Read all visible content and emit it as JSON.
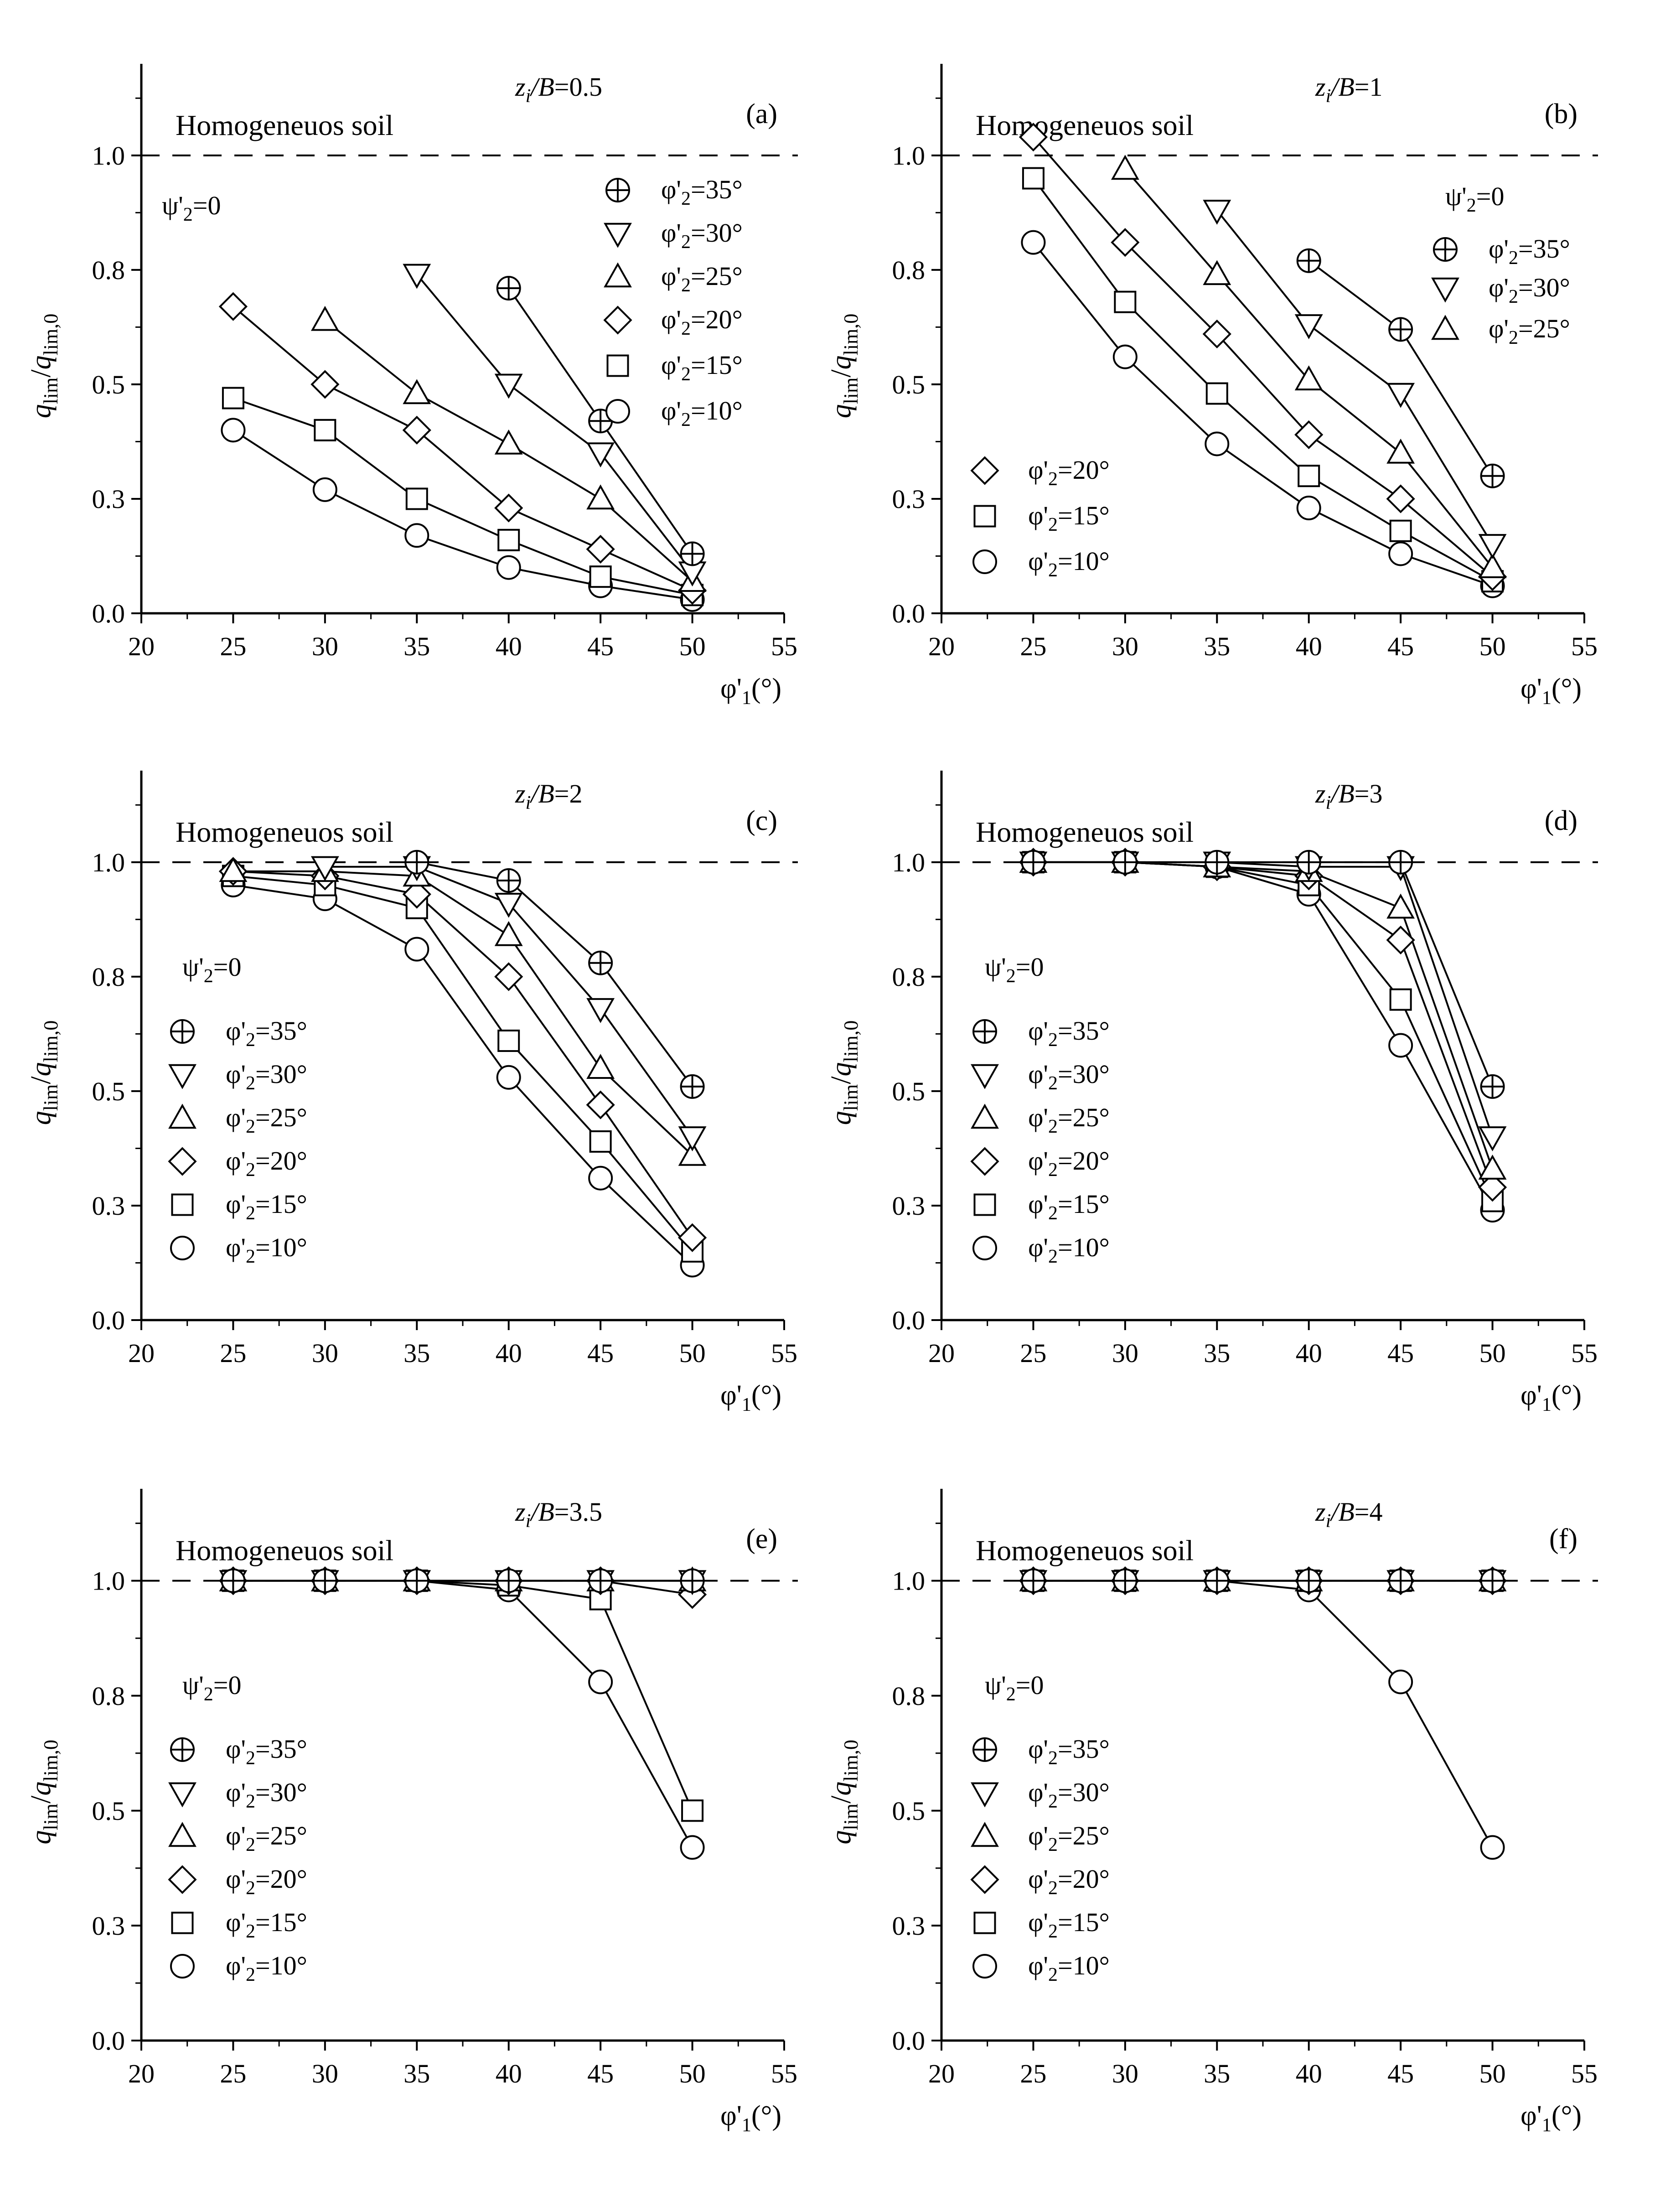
{
  "y_tick_labels": [
    "0.0",
    "0.3",
    "0.5",
    "0.8",
    "1.0"
  ],
  "x_tick_labels": [
    "20",
    "25",
    "30",
    "35",
    "40",
    "45",
    "50",
    "55"
  ],
  "ylabel": {
    "q": "q",
    "lim": "lim",
    "slash": "/",
    "q2": "q",
    "sub2": "lim,0"
  },
  "xlabel": {
    "base": "φ'",
    "sub": "1",
    "unit": "(°)"
  },
  "homogeneous_label": "Homogeneuos soil",
  "psi_label": {
    "base": "ψ'",
    "sub": "2",
    "val": "=0"
  },
  "legend_entries": [
    {
      "base": "φ'",
      "sub": "2",
      "val": "=35°",
      "marker": "circle-plus"
    },
    {
      "base": "φ'",
      "sub": "2",
      "val": "=30°",
      "marker": "triangle-down"
    },
    {
      "base": "φ'",
      "sub": "2",
      "val": "=25°",
      "marker": "triangle-up"
    },
    {
      "base": "φ'",
      "sub": "2",
      "val": "=20°",
      "marker": "diamond"
    },
    {
      "base": "φ'",
      "sub": "2",
      "val": "=15°",
      "marker": "square"
    },
    {
      "base": "φ'",
      "sub": "2",
      "val": "=10°",
      "marker": "circle"
    }
  ],
  "chart_data": [
    {
      "type": "line",
      "panel": "(a)",
      "ratio_label": "zi/B=0.5",
      "ratio_value": "0.5",
      "x_label": "φ'1(°)",
      "y_label": "qlim/qlim,0",
      "xlim": [
        20,
        55
      ],
      "ylim": [
        0,
        1.2
      ],
      "reference_line": {
        "y": 1.0,
        "label": "Homogeneuos soil"
      },
      "series": [
        {
          "name": "φ'2=35°",
          "x": [
            40,
            45,
            50
          ],
          "y": [
            0.71,
            0.42,
            0.13
          ]
        },
        {
          "name": "φ'2=30°",
          "x": [
            35,
            40,
            45,
            50
          ],
          "y": [
            0.74,
            0.5,
            0.35,
            0.09
          ]
        },
        {
          "name": "φ'2=25°",
          "x": [
            30,
            35,
            40,
            45,
            50
          ],
          "y": [
            0.64,
            0.48,
            0.37,
            0.25,
            0.07
          ]
        },
        {
          "name": "φ'2=20°",
          "x": [
            25,
            30,
            35,
            40,
            45,
            50
          ],
          "y": [
            0.67,
            0.5,
            0.4,
            0.23,
            0.14,
            0.05
          ]
        },
        {
          "name": "φ'2=15°",
          "x": [
            25,
            30,
            35,
            40,
            45,
            50
          ],
          "y": [
            0.47,
            0.4,
            0.25,
            0.16,
            0.08,
            0.04
          ]
        },
        {
          "name": "φ'2=10°",
          "x": [
            25,
            30,
            35,
            40,
            45,
            50
          ],
          "y": [
            0.4,
            0.27,
            0.17,
            0.1,
            0.06,
            0.03
          ]
        }
      ]
    },
    {
      "type": "line",
      "panel": "(b)",
      "ratio_label": "zi/B=1",
      "ratio_value": "1",
      "x_label": "φ'1(°)",
      "y_label": "qlim/qlim,0",
      "xlim": [
        20,
        55
      ],
      "ylim": [
        0,
        1.2
      ],
      "reference_line": {
        "y": 1.0,
        "label": "Homogeneuos soil"
      },
      "series": [
        {
          "name": "φ'2=35°",
          "x": [
            40,
            45,
            50
          ],
          "y": [
            0.77,
            0.62,
            0.3
          ]
        },
        {
          "name": "φ'2=30°",
          "x": [
            35,
            40,
            45,
            50
          ],
          "y": [
            0.88,
            0.63,
            0.48,
            0.15
          ]
        },
        {
          "name": "φ'2=25°",
          "x": [
            30,
            35,
            40,
            45,
            50
          ],
          "y": [
            0.97,
            0.74,
            0.51,
            0.35,
            0.1
          ]
        },
        {
          "name": "φ'2=20°",
          "x": [
            25,
            30,
            35,
            40,
            45,
            50
          ],
          "y": [
            1.04,
            0.81,
            0.61,
            0.39,
            0.25,
            0.08
          ]
        },
        {
          "name": "φ'2=15°",
          "x": [
            25,
            30,
            35,
            40,
            45,
            50
          ],
          "y": [
            0.95,
            0.68,
            0.48,
            0.3,
            0.18,
            0.07
          ]
        },
        {
          "name": "φ'2=10°",
          "x": [
            25,
            30,
            35,
            40,
            45,
            50
          ],
          "y": [
            0.81,
            0.56,
            0.37,
            0.23,
            0.13,
            0.06
          ]
        }
      ]
    },
    {
      "type": "line",
      "panel": "(c)",
      "ratio_label": "zi/B=2",
      "ratio_value": "2",
      "x_label": "φ'1(°)",
      "y_label": "qlim/qlim,0",
      "xlim": [
        20,
        55
      ],
      "ylim": [
        0,
        1.2
      ],
      "reference_line": {
        "y": 1.0,
        "label": "Homogeneuos soil"
      },
      "series": [
        {
          "name": "φ'2=35°",
          "x": [
            35,
            40,
            45,
            50
          ],
          "y": [
            1.0,
            0.96,
            0.78,
            0.51
          ]
        },
        {
          "name": "φ'2=30°",
          "x": [
            30,
            35,
            40,
            45,
            50
          ],
          "y": [
            0.99,
            0.99,
            0.91,
            0.68,
            0.4
          ]
        },
        {
          "name": "φ'2=25°",
          "x": [
            25,
            30,
            35,
            40,
            45,
            50
          ],
          "y": [
            0.98,
            0.98,
            0.97,
            0.84,
            0.55,
            0.36
          ]
        },
        {
          "name": "φ'2=20°",
          "x": [
            25,
            30,
            35,
            40,
            45,
            50
          ],
          "y": [
            0.98,
            0.97,
            0.93,
            0.75,
            0.47,
            0.18
          ]
        },
        {
          "name": "φ'2=15°",
          "x": [
            25,
            30,
            35,
            40,
            45,
            50
          ],
          "y": [
            0.97,
            0.95,
            0.9,
            0.61,
            0.39,
            0.15
          ]
        },
        {
          "name": "φ'2=10°",
          "x": [
            25,
            30,
            35,
            40,
            45,
            50
          ],
          "y": [
            0.95,
            0.92,
            0.81,
            0.53,
            0.31,
            0.12
          ]
        }
      ]
    },
    {
      "type": "line",
      "panel": "(d)",
      "ratio_label": "zi/B=3",
      "ratio_value": "3",
      "x_label": "φ'1(°)",
      "y_label": "qlim/qlim,0",
      "xlim": [
        20,
        55
      ],
      "ylim": [
        0,
        1.2
      ],
      "reference_line": {
        "y": 1.0,
        "label": "Homogeneuos soil"
      },
      "series": [
        {
          "name": "φ'2=35°",
          "x": [
            25,
            30,
            35,
            40,
            45,
            50
          ],
          "y": [
            1.0,
            1.0,
            1.0,
            1.0,
            1.0,
            0.51
          ]
        },
        {
          "name": "φ'2=30°",
          "x": [
            25,
            30,
            35,
            40,
            45,
            50
          ],
          "y": [
            1.0,
            1.0,
            1.0,
            0.99,
            0.99,
            0.4
          ]
        },
        {
          "name": "φ'2=25°",
          "x": [
            25,
            30,
            35,
            40,
            45,
            50
          ],
          "y": [
            1.0,
            1.0,
            0.99,
            0.98,
            0.9,
            0.33
          ]
        },
        {
          "name": "φ'2=20°",
          "x": [
            25,
            30,
            35,
            40,
            45,
            50
          ],
          "y": [
            1.0,
            1.0,
            0.99,
            0.97,
            0.83,
            0.29
          ]
        },
        {
          "name": "φ'2=15°",
          "x": [
            25,
            30,
            35,
            40,
            45,
            50
          ],
          "y": [
            1.0,
            1.0,
            0.99,
            0.95,
            0.7,
            0.26
          ]
        },
        {
          "name": "φ'2=10°",
          "x": [
            25,
            30,
            35,
            40,
            45,
            50
          ],
          "y": [
            1.0,
            1.0,
            0.99,
            0.93,
            0.6,
            0.24
          ]
        }
      ]
    },
    {
      "type": "line",
      "panel": "(e)",
      "ratio_label": "zi/B=3.5",
      "ratio_value": "3.5",
      "x_label": "φ'1(°)",
      "y_label": "qlim/qlim,0",
      "xlim": [
        20,
        55
      ],
      "ylim": [
        0,
        1.2
      ],
      "reference_line": {
        "y": 1.0,
        "label": "Homogeneuos soil"
      },
      "series": [
        {
          "name": "φ'2=35°",
          "x": [
            25,
            30,
            35,
            40,
            45,
            50
          ],
          "y": [
            1.0,
            1.0,
            1.0,
            1.0,
            1.0,
            1.0
          ]
        },
        {
          "name": "φ'2=30°",
          "x": [
            25,
            30,
            35,
            40,
            45,
            50
          ],
          "y": [
            1.0,
            1.0,
            1.0,
            1.0,
            1.0,
            1.0
          ]
        },
        {
          "name": "φ'2=25°",
          "x": [
            25,
            30,
            35,
            40,
            45,
            50
          ],
          "y": [
            1.0,
            1.0,
            1.0,
            1.0,
            1.0,
            1.0
          ]
        },
        {
          "name": "φ'2=20°",
          "x": [
            25,
            30,
            35,
            40,
            45,
            50
          ],
          "y": [
            1.0,
            1.0,
            1.0,
            1.0,
            1.0,
            0.97
          ]
        },
        {
          "name": "φ'2=15°",
          "x": [
            25,
            30,
            35,
            40,
            45,
            50
          ],
          "y": [
            1.0,
            1.0,
            1.0,
            0.99,
            0.96,
            0.5
          ]
        },
        {
          "name": "φ'2=10°",
          "x": [
            25,
            30,
            35,
            40,
            45,
            50
          ],
          "y": [
            1.0,
            1.0,
            1.0,
            0.98,
            0.78,
            0.42
          ]
        }
      ]
    },
    {
      "type": "line",
      "panel": "(f)",
      "ratio_label": "zi/B=4",
      "ratio_value": "4",
      "x_label": "φ'1(°)",
      "y_label": "qlim/qlim,0",
      "xlim": [
        20,
        55
      ],
      "ylim": [
        0,
        1.2
      ],
      "reference_line": {
        "y": 1.0,
        "label": "Homogeneuos soil"
      },
      "series": [
        {
          "name": "φ'2=35°",
          "x": [
            25,
            30,
            35,
            40,
            45,
            50
          ],
          "y": [
            1.0,
            1.0,
            1.0,
            1.0,
            1.0,
            1.0
          ]
        },
        {
          "name": "φ'2=30°",
          "x": [
            25,
            30,
            35,
            40,
            45,
            50
          ],
          "y": [
            1.0,
            1.0,
            1.0,
            1.0,
            1.0,
            1.0
          ]
        },
        {
          "name": "φ'2=25°",
          "x": [
            25,
            30,
            35,
            40,
            45,
            50
          ],
          "y": [
            1.0,
            1.0,
            1.0,
            1.0,
            1.0,
            1.0
          ]
        },
        {
          "name": "φ'2=20°",
          "x": [
            25,
            30,
            35,
            40,
            45,
            50
          ],
          "y": [
            1.0,
            1.0,
            1.0,
            1.0,
            1.0,
            1.0
          ]
        },
        {
          "name": "φ'2=15°",
          "x": [
            25,
            30,
            35,
            40,
            45,
            50
          ],
          "y": [
            1.0,
            1.0,
            1.0,
            1.0,
            1.0,
            1.0
          ]
        },
        {
          "name": "φ'2=10°",
          "x": [
            25,
            30,
            35,
            40,
            45,
            50
          ],
          "y": [
            1.0,
            1.0,
            1.0,
            0.98,
            0.78,
            0.42
          ]
        }
      ]
    }
  ]
}
